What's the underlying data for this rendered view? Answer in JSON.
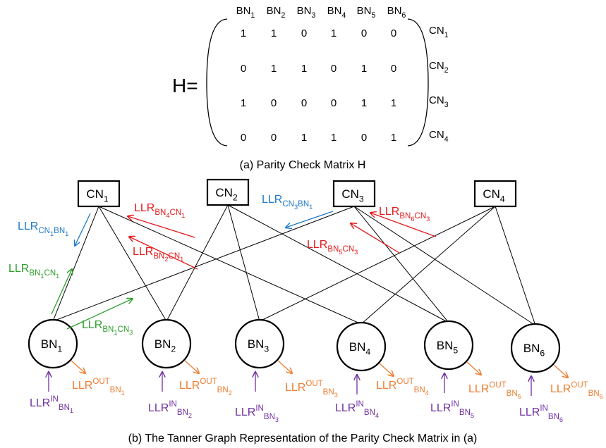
{
  "matrix": {
    "h_label": "H=",
    "column_labels": [
      {
        "base": "BN",
        "sub": "1"
      },
      {
        "base": "BN",
        "sub": "2"
      },
      {
        "base": "BN",
        "sub": "3"
      },
      {
        "base": "BN",
        "sub": "4"
      },
      {
        "base": "BN",
        "sub": "5"
      },
      {
        "base": "BN",
        "sub": "6"
      }
    ],
    "row_labels": [
      {
        "base": "CN",
        "sub": "1"
      },
      {
        "base": "CN",
        "sub": "2"
      },
      {
        "base": "CN",
        "sub": "3"
      },
      {
        "base": "CN",
        "sub": "4"
      }
    ],
    "rows": [
      [
        "1",
        "1",
        "0",
        "1",
        "0",
        "0"
      ],
      [
        "0",
        "1",
        "1",
        "0",
        "1",
        "0"
      ],
      [
        "1",
        "0",
        "0",
        "0",
        "1",
        "1"
      ],
      [
        "0",
        "0",
        "1",
        "1",
        "0",
        "1"
      ]
    ],
    "caption": "(a) Parity Check Matrix H"
  },
  "graph": {
    "check_nodes": [
      {
        "base": "CN",
        "sub": "1"
      },
      {
        "base": "CN",
        "sub": "2"
      },
      {
        "base": "CN",
        "sub": "3"
      },
      {
        "base": "CN",
        "sub": "4"
      }
    ],
    "bit_nodes": [
      {
        "base": "BN",
        "sub": "1"
      },
      {
        "base": "BN",
        "sub": "2"
      },
      {
        "base": "BN",
        "sub": "3"
      },
      {
        "base": "BN",
        "sub": "4"
      },
      {
        "base": "BN",
        "sub": "5"
      },
      {
        "base": "BN",
        "sub": "6"
      }
    ],
    "messages": [
      {
        "color": "#1f78c8",
        "base": "LLR",
        "sub1": "CN",
        "sub1_idx": "1",
        "sub2": "BN",
        "sub2_idx": "1"
      },
      {
        "color": "#e31a1c",
        "base": "LLR",
        "sub1": "BN",
        "sub1_idx": "4",
        "sub2": "CN",
        "sub2_idx": "1"
      },
      {
        "color": "#e31a1c",
        "base": "LLR",
        "sub1": "BN",
        "sub1_idx": "2",
        "sub2": "CN",
        "sub2_idx": "1"
      },
      {
        "color": "#2ca02c",
        "base": "LLR",
        "sub1": "BN",
        "sub1_idx": "1",
        "sub2": "CN",
        "sub2_idx": "1"
      },
      {
        "color": "#2ca02c",
        "base": "LLR",
        "sub1": "BN",
        "sub1_idx": "1",
        "sub2": "CN",
        "sub2_idx": "3"
      },
      {
        "color": "#1f78c8",
        "base": "LLR",
        "sub1": "CN",
        "sub1_idx": "3",
        "sub2": "BN",
        "sub2_idx": "1"
      },
      {
        "color": "#e31a1c",
        "base": "LLR",
        "sub1": "BN",
        "sub1_idx": "6",
        "sub2": "CN",
        "sub2_idx": "3"
      },
      {
        "color": "#e31a1c",
        "base": "LLR",
        "sub1": "BN",
        "sub1_idx": "5",
        "sub2": "CN",
        "sub2_idx": "3"
      }
    ],
    "inputs": [
      {
        "base": "LLR",
        "sup": "IN",
        "sub": "BN",
        "idx": "1"
      },
      {
        "base": "LLR",
        "sup": "IN",
        "sub": "BN",
        "idx": "2"
      },
      {
        "base": "LLR",
        "sup": "IN",
        "sub": "BN",
        "idx": "3"
      },
      {
        "base": "LLR",
        "sup": "IN",
        "sub": "BN",
        "idx": "4"
      },
      {
        "base": "LLR",
        "sup": "IN",
        "sub": "BN",
        "idx": "5"
      },
      {
        "base": "LLR",
        "sup": "IN",
        "sub": "BN",
        "idx": "6"
      }
    ],
    "outputs": [
      {
        "base": "LLR",
        "sup": "OUT",
        "sub": "BN",
        "idx": "1"
      },
      {
        "base": "LLR",
        "sup": "OUT",
        "sub": "BN",
        "idx": "2"
      },
      {
        "base": "LLR",
        "sup": "OUT",
        "sub": "BN",
        "idx": "3"
      },
      {
        "base": "LLR",
        "sup": "OUT",
        "sub": "BN",
        "idx": "4"
      },
      {
        "base": "LLR",
        "sup": "OUT",
        "sub": "BN",
        "idx": "5"
      },
      {
        "base": "LLR",
        "sup": "OUT",
        "sub": "BN",
        "idx": "6"
      }
    ],
    "input_color": "#7030a0",
    "output_color": "#ed7d31",
    "caption": "(b) The Tanner Graph Representation of the Parity Check Matrix in (a)"
  }
}
